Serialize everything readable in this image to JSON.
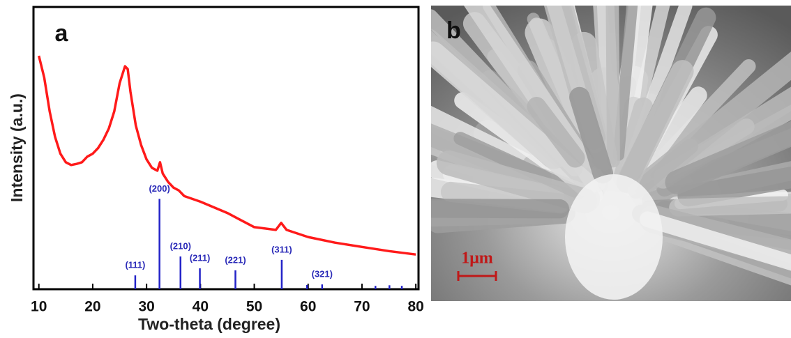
{
  "chart_data": {
    "type": "line",
    "panel_label": "a",
    "x_label": "Two-theta (degree)",
    "y_label": "Intensity (a.u.)",
    "color": "#ff1a1a",
    "x": [
      10,
      11,
      12,
      13,
      14,
      15,
      16,
      17,
      18,
      19,
      20,
      21,
      22,
      23,
      24,
      25,
      26,
      26.5,
      27,
      28,
      29,
      30,
      31,
      32,
      32.5,
      33,
      34,
      35,
      36,
      37,
      40,
      45,
      47,
      50,
      54,
      55,
      56,
      60,
      65,
      70,
      75,
      80
    ],
    "values": [
      82.7,
      75,
      63,
      54,
      48,
      45,
      44,
      44.4,
      45,
      47,
      48,
      50,
      53,
      57,
      63,
      73,
      79,
      78,
      70,
      58,
      51,
      46,
      43,
      42,
      45,
      41,
      38,
      36,
      35,
      33,
      31,
      27,
      25,
      22,
      21,
      23.5,
      21,
      18.5,
      16.5,
      15,
      13.5,
      12.3
    ],
    "reference_peaks": {
      "color": "#2323c8",
      "x": [
        27.9,
        32.4,
        36.3,
        39.9,
        46.5,
        55.1,
        59.8,
        62.6,
        72.5,
        75.1,
        77.4
      ],
      "values": [
        4.9,
        32,
        11.6,
        7.4,
        6.7,
        10.4,
        1.5,
        1.7,
        1.2,
        1.4,
        1.2
      ],
      "labels": [
        "(111)",
        "(200)",
        "(210)",
        "(211)",
        "(221)",
        "(311)",
        null,
        "(321)",
        null,
        null,
        null
      ]
    },
    "xlim": [
      9,
      80.5
    ],
    "ylim": [
      0,
      100
    ],
    "xticks": [
      10,
      20,
      30,
      40,
      50,
      60,
      70,
      80
    ]
  },
  "panel_b": {
    "label": "b",
    "scale_bar": "1μm"
  }
}
